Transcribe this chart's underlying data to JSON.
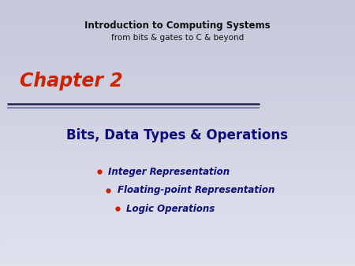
{
  "bg_color_top": "#e0e2ee",
  "bg_color_bottom": "#c8cadc",
  "title_line1": "Introduction to Computing Systems",
  "title_line2": "from bits & gates to C & beyond",
  "chapter_text": "Chapter 2",
  "chapter_color": "#cc2200",
  "divider_color_dark": "#22224a",
  "divider_color_light": "#6677aa",
  "main_heading": "Bits, Data Types & Operations",
  "main_heading_color": "#0d0d7a",
  "bullet_color": "#cc2200",
  "bullet_items": [
    "Integer Representation",
    "Floating-point Representation",
    "Logic Operations"
  ],
  "bullet_text_color": "#0d0d7a",
  "title_color": "#111111",
  "figsize": [
    4.5,
    3.38
  ],
  "dpi": 100
}
